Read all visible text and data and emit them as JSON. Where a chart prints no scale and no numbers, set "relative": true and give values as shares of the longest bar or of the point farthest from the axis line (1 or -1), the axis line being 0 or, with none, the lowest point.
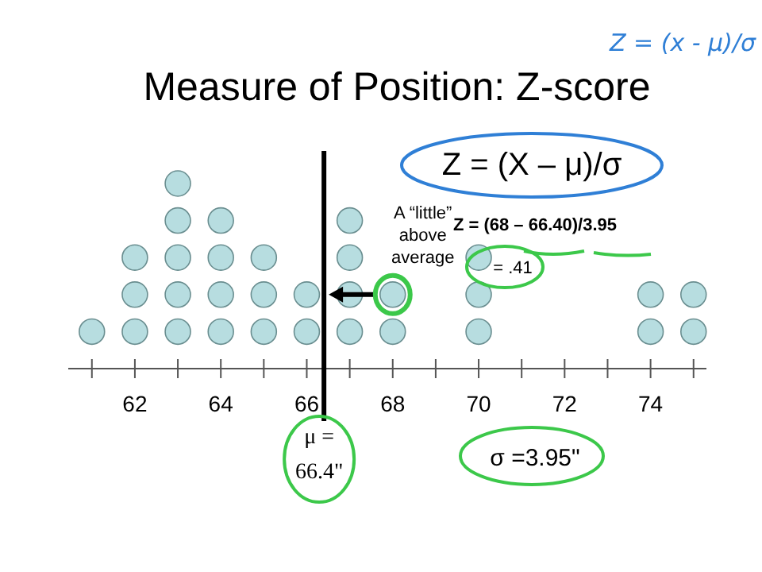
{
  "chart_data": {
    "type": "scatter",
    "title": "Measure of Position: Z-score",
    "x": [
      61,
      62,
      62,
      62,
      63,
      63,
      63,
      63,
      63,
      64,
      64,
      64,
      64,
      65,
      65,
      65,
      66,
      66,
      67,
      67,
      67,
      67,
      68,
      68,
      70,
      70,
      70,
      74,
      74,
      75,
      75
    ],
    "values": [
      0.2,
      0.2,
      0.4,
      0.6,
      0.2,
      0.4,
      0.6,
      0.8,
      1,
      0.2,
      0.4,
      0.6,
      0.8,
      0.2,
      0.4,
      0.6,
      0.2,
      0.4,
      0.2,
      0.4,
      0.6,
      0.8,
      0.2,
      0.4,
      0.2,
      0.4,
      0.6,
      0.2,
      0.4,
      0.2,
      0.4
    ],
    "relative": true,
    "color": "#b7dde0",
    "marker": "circle",
    "xlim": [
      60.45,
      75.3
    ],
    "xticks": [
      {
        "value": 61,
        "label": null
      },
      62,
      {
        "value": 63,
        "label": null
      },
      64,
      {
        "value": 65,
        "label": null
      },
      66,
      {
        "value": 67,
        "label": null
      },
      68,
      {
        "value": 69,
        "label": null
      },
      70,
      {
        "value": 71,
        "label": null
      },
      72,
      {
        "value": 73,
        "label": null
      },
      74,
      {
        "value": 75,
        "label": null
      }
    ],
    "tick_labels": "x",
    "grid": false,
    "ref_lines": [
      {
        "axis": "x",
        "value": 66.4,
        "label": "μ = 66.4\"",
        "color": "#000000"
      }
    ],
    "annotations": [
      {
        "text": "A “little” above average",
        "x": 68,
        "y": 0.4
      },
      "Z = (X – μ)/σ",
      "Z = (68 – 66.40)/3.95",
      "= .41",
      "σ =3.95\"",
      "Z = (x - μ)/σ"
    ]
  }
}
